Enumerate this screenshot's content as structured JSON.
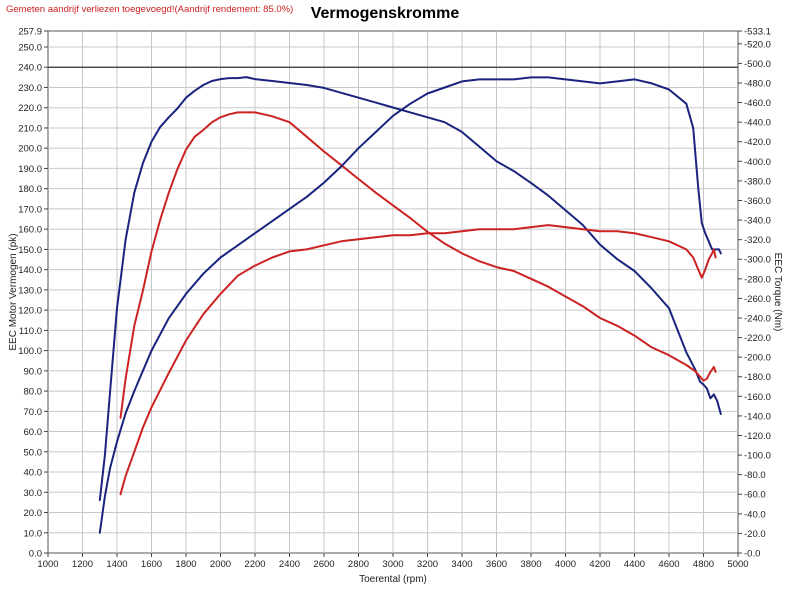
{
  "chart_data": {
    "type": "line",
    "title": "Vermogenskromme",
    "annotation": "Gemeten aandrijf verliezen toegevoegd!(Aandrijf rendement: 85.0%)",
    "xlabel": "Toerental (rpm)",
    "ylabel": "EEC Motor Vermogen (pk)",
    "y2label": "EEC Torque (Nm)",
    "xlim": [
      1000,
      5000
    ],
    "ylim": [
      0,
      257.9
    ],
    "y2lim": [
      0,
      533.1
    ],
    "x_ticks": [
      "1000",
      "1200",
      "1400",
      "1600",
      "1800",
      "2000",
      "2200",
      "2400",
      "2600",
      "2800",
      "3000",
      "3200",
      "3400",
      "3600",
      "3800",
      "4000",
      "4200",
      "4400",
      "4600",
      "4800",
      "5000"
    ],
    "y_ticks": [
      "0.0",
      "10.0",
      "20.0",
      "30.0",
      "40.0",
      "50.0",
      "60.0",
      "70.0",
      "80.0",
      "90.0",
      "100.0",
      "110.0",
      "120.0",
      "130.0",
      "140.0",
      "150.0",
      "160.0",
      "170.0",
      "180.0",
      "190.0",
      "200.0",
      "210.0",
      "220.0",
      "230.0",
      "240.0",
      "250.0",
      "257.9"
    ],
    "y2_ticks": [
      "0.0",
      "20.0",
      "40.0",
      "60.0",
      "80.0",
      "100.0",
      "120.0",
      "140.0",
      "160.0",
      "180.0",
      "200.0",
      "220.0",
      "240.0",
      "260.0",
      "280.0",
      "300.0",
      "320.0",
      "340.0",
      "360.0",
      "380.0",
      "400.0",
      "420.0",
      "440.0",
      "460.0",
      "480.0",
      "500.0",
      "520.0",
      "533.1"
    ],
    "grid": true,
    "reference_line_y": 240,
    "colors": {
      "blue": "#1a237e",
      "red": "#cc2222"
    },
    "series": [
      {
        "axis": "right",
        "color": "blue",
        "x": [
          1300,
          1330,
          1360,
          1400,
          1450,
          1500,
          1550,
          1600,
          1650,
          1700,
          1750,
          1800,
          1850,
          1900,
          1950,
          2000,
          2050,
          2100,
          2150,
          2200,
          2300,
          2400,
          2500,
          2600,
          2700,
          2800,
          2900,
          3000,
          3100,
          3200,
          3300,
          3400,
          3500,
          3600,
          3700,
          3800,
          3900,
          4000,
          4100,
          4200,
          4300,
          4400,
          4500,
          4600,
          4700,
          4750,
          4780,
          4800,
          4820,
          4840,
          4860,
          4880,
          4900
        ],
        "y": [
          54,
          100,
          165,
          250,
          320,
          368,
          398,
          420,
          435,
          445,
          454,
          465,
          472,
          478,
          482,
          484,
          485,
          485,
          486,
          484,
          482,
          480,
          478,
          475,
          470,
          465,
          460,
          455,
          450,
          445,
          440,
          430,
          415,
          400,
          390,
          378,
          365,
          350,
          335,
          315,
          300,
          288,
          270,
          250,
          205,
          188,
          175,
          172,
          168,
          158,
          162,
          155,
          142
        ]
      },
      {
        "axis": "right",
        "color": "red",
        "x": [
          1420,
          1450,
          1500,
          1550,
          1600,
          1650,
          1700,
          1750,
          1800,
          1850,
          1900,
          1950,
          2000,
          2050,
          2100,
          2150,
          2200,
          2250,
          2300,
          2400,
          2500,
          2600,
          2700,
          2800,
          2900,
          3000,
          3100,
          3200,
          3300,
          3400,
          3500,
          3600,
          3700,
          3800,
          3900,
          4000,
          4100,
          4200,
          4300,
          4400,
          4500,
          4600,
          4700,
          4750,
          4780,
          4800,
          4820,
          4840,
          4860,
          4870
        ],
        "y": [
          138,
          178,
          232,
          268,
          308,
          340,
          368,
          392,
          412,
          425,
          432,
          440,
          445,
          448,
          450,
          450,
          450,
          448,
          446,
          440,
          425,
          410,
          396,
          382,
          368,
          355,
          342,
          328,
          316,
          306,
          298,
          292,
          288,
          280,
          272,
          262,
          252,
          240,
          232,
          222,
          210,
          202,
          192,
          186,
          180,
          176,
          178,
          185,
          190,
          185
        ]
      },
      {
        "axis": "left",
        "color": "blue",
        "x": [
          1300,
          1330,
          1360,
          1400,
          1450,
          1500,
          1550,
          1600,
          1700,
          1800,
          1900,
          2000,
          2100,
          2200,
          2300,
          2400,
          2500,
          2600,
          2700,
          2800,
          2900,
          3000,
          3100,
          3200,
          3300,
          3400,
          3500,
          3600,
          3700,
          3800,
          3900,
          4000,
          4100,
          4200,
          4300,
          4400,
          4500,
          4600,
          4700,
          4740,
          4770,
          4790,
          4810,
          4830,
          4850,
          4870,
          4890,
          4900
        ],
        "y": [
          10,
          28,
          42,
          55,
          69,
          80,
          90,
          100,
          116,
          128,
          138,
          146,
          152,
          158,
          164,
          170,
          176,
          183,
          191,
          200,
          208,
          216,
          222,
          227,
          230,
          233,
          234,
          234,
          234,
          235,
          235,
          234,
          233,
          232,
          233,
          234,
          232,
          229,
          222,
          210,
          180,
          163,
          158,
          154,
          150,
          150,
          150,
          148
        ]
      },
      {
        "axis": "left",
        "color": "red",
        "x": [
          1420,
          1450,
          1500,
          1550,
          1600,
          1700,
          1800,
          1900,
          2000,
          2100,
          2200,
          2300,
          2400,
          2500,
          2600,
          2700,
          2800,
          2900,
          3000,
          3100,
          3200,
          3300,
          3400,
          3500,
          3600,
          3700,
          3800,
          3900,
          4000,
          4100,
          4200,
          4300,
          4400,
          4500,
          4600,
          4700,
          4740,
          4770,
          4790,
          4810,
          4830,
          4850,
          4860,
          4870
        ],
        "y": [
          29,
          38,
          50,
          62,
          72,
          89,
          105,
          118,
          128,
          137,
          142,
          146,
          149,
          150,
          152,
          154,
          155,
          156,
          157,
          157,
          158,
          158,
          159,
          160,
          160,
          160,
          161,
          162,
          161,
          160,
          159,
          159,
          158,
          156,
          154,
          150,
          146,
          140,
          136,
          140,
          145,
          148,
          150,
          146
        ]
      }
    ]
  }
}
